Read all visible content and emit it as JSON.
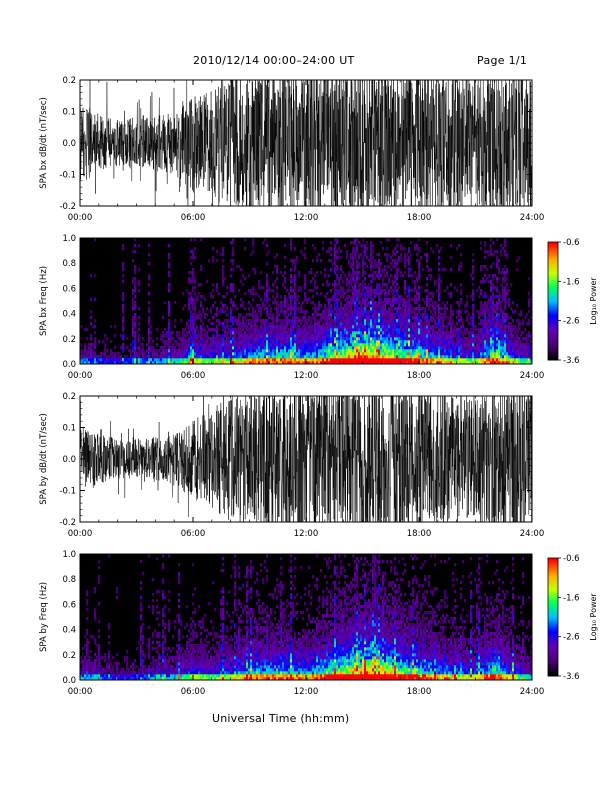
{
  "header": {
    "title": "2010/12/14  00:00–24:00 UT",
    "page": "Page 1/1"
  },
  "footer": {
    "xlabel": "Universal Time (hh:mm)"
  },
  "colorbar": {
    "label": "Log₁₀ Power",
    "ticks": [
      "-0.6",
      "-1.6",
      "-2.6",
      "-3.6"
    ],
    "range": [
      -3.6,
      -0.6
    ],
    "colors": [
      "#000000",
      "#6a00a8",
      "#0000ff",
      "#00c8ff",
      "#00ff50",
      "#c8ff00",
      "#ffb400",
      "#ff0000"
    ]
  },
  "chart_data": [
    {
      "type": "line",
      "ylabel": "SPA bx dB/dt (nT/sec)",
      "xlim": [
        "00:00",
        "24:00"
      ],
      "xticks": [
        "00:00",
        "06:00",
        "12:00",
        "18:00",
        "24:00"
      ],
      "ylim": [
        -0.2,
        0.2
      ],
      "yticks": [
        "-0.2",
        "-0.1",
        "0.0",
        "0.1",
        "0.2"
      ],
      "series": [
        {
          "x_hours": [
            0,
            1,
            2,
            3,
            4,
            5,
            6,
            7,
            8,
            9,
            10,
            11,
            12,
            13,
            14,
            15,
            16,
            17,
            18,
            19,
            20,
            21,
            22,
            23,
            24
          ],
          "envelope_amplitude": [
            0.12,
            0.1,
            0.07,
            0.08,
            0.09,
            0.1,
            0.16,
            0.17,
            0.22,
            0.24,
            0.25,
            0.25,
            0.25,
            0.25,
            0.25,
            0.25,
            0.25,
            0.25,
            0.25,
            0.24,
            0.24,
            0.23,
            0.25,
            0.25,
            0.25
          ]
        }
      ]
    },
    {
      "type": "heatmap",
      "ylabel": "SPA bx Freq (Hz)",
      "xlim": [
        "00:00",
        "24:00"
      ],
      "xticks": [
        "00:00",
        "06:00",
        "12:00",
        "18:00",
        "24:00"
      ],
      "ylim": [
        0.0,
        1.0
      ],
      "yticks": [
        "0.0",
        "0.2",
        "0.4",
        "0.6",
        "0.8",
        "1.0"
      ],
      "zlabel": "Log₁₀ Power",
      "zrange": [
        -3.6,
        -0.6
      ],
      "activity_by_hour": [
        0.25,
        0.2,
        0.15,
        0.2,
        0.25,
        0.3,
        0.45,
        0.4,
        0.45,
        0.55,
        0.6,
        0.6,
        0.55,
        0.65,
        0.8,
        0.9,
        0.9,
        0.75,
        0.65,
        0.55,
        0.45,
        0.4,
        0.7,
        0.45,
        0.3
      ]
    },
    {
      "type": "line",
      "ylabel": "SPA by dB/dt (nT/sec)",
      "xlim": [
        "00:00",
        "24:00"
      ],
      "xticks": [
        "00:00",
        "06:00",
        "12:00",
        "18:00",
        "24:00"
      ],
      "ylim": [
        -0.2,
        0.2
      ],
      "yticks": [
        "-0.2",
        "-0.1",
        "0.0",
        "0.1",
        "0.2"
      ],
      "series": [
        {
          "x_hours": [
            0,
            1,
            2,
            3,
            4,
            5,
            6,
            7,
            8,
            9,
            10,
            11,
            12,
            13,
            14,
            15,
            16,
            17,
            18,
            19,
            20,
            21,
            22,
            23,
            24
          ],
          "envelope_amplitude": [
            0.1,
            0.09,
            0.06,
            0.06,
            0.07,
            0.08,
            0.12,
            0.15,
            0.2,
            0.23,
            0.25,
            0.25,
            0.25,
            0.25,
            0.25,
            0.25,
            0.25,
            0.25,
            0.24,
            0.22,
            0.21,
            0.2,
            0.24,
            0.25,
            0.25
          ]
        }
      ]
    },
    {
      "type": "heatmap",
      "ylabel": "SPA by Freq (Hz)",
      "xlim": [
        "00:00",
        "24:00"
      ],
      "xticks": [
        "00:00",
        "06:00",
        "12:00",
        "18:00",
        "24:00"
      ],
      "ylim": [
        0.0,
        1.0
      ],
      "yticks": [
        "0.0",
        "0.2",
        "0.4",
        "0.6",
        "0.8",
        "1.0"
      ],
      "zlabel": "Log₁₀ Power",
      "zrange": [
        -3.6,
        -0.6
      ],
      "activity_by_hour": [
        0.3,
        0.25,
        0.15,
        0.2,
        0.25,
        0.3,
        0.45,
        0.4,
        0.45,
        0.55,
        0.6,
        0.6,
        0.55,
        0.65,
        0.8,
        0.9,
        0.9,
        0.75,
        0.65,
        0.55,
        0.5,
        0.45,
        0.7,
        0.45,
        0.3
      ]
    }
  ]
}
